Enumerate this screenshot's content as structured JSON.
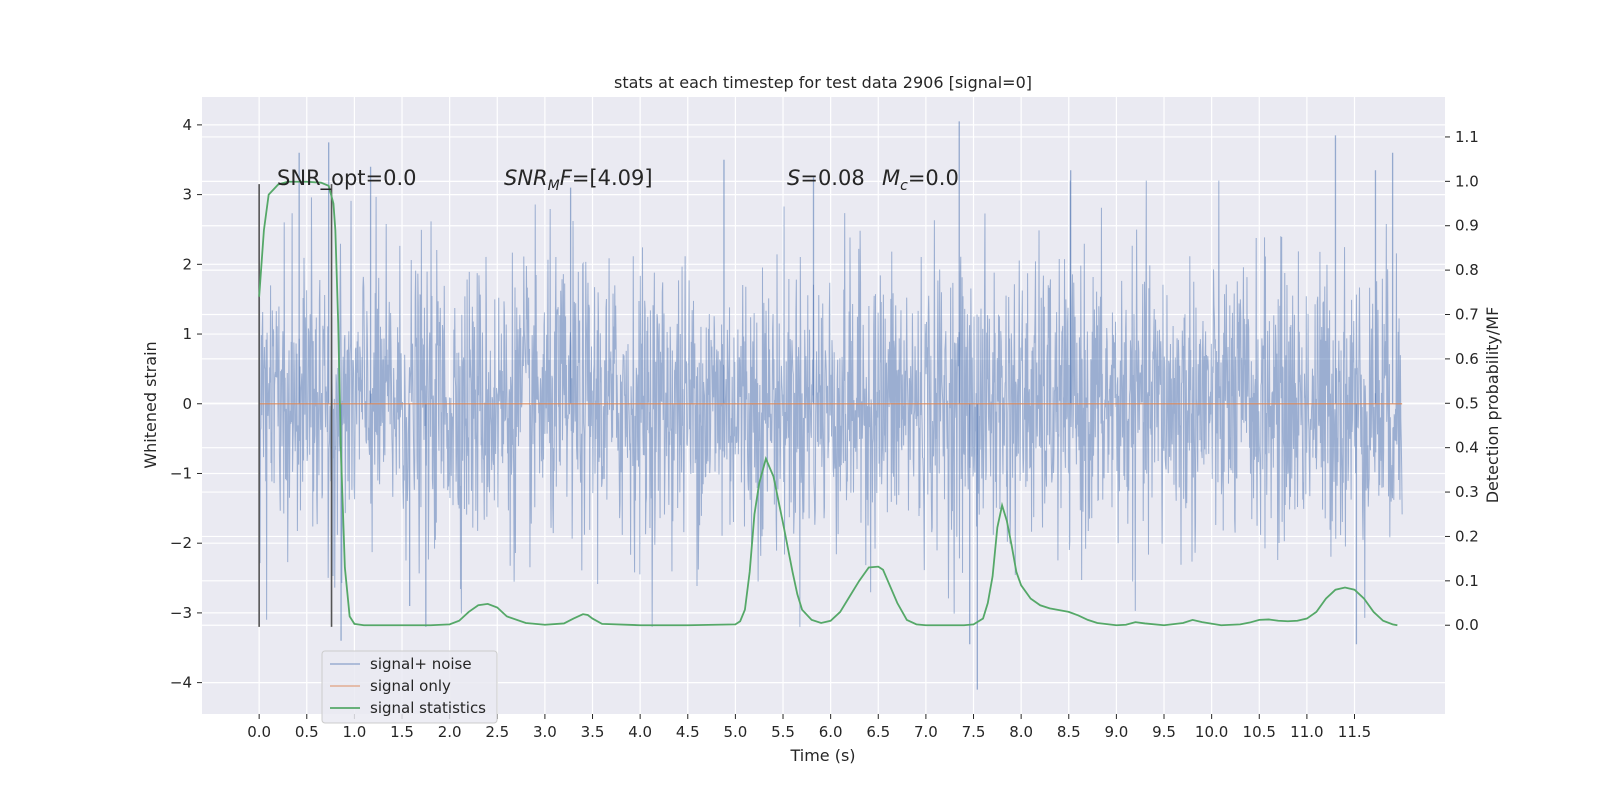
{
  "chart_data": {
    "type": "line",
    "title": "stats at each timestep for test data 2906 [signal=0]",
    "xlabel": "Time (s)",
    "ylabel": "Whitened strain",
    "ylabel_right": "Detection probability/MF",
    "xlim": [
      -0.6,
      12.45
    ],
    "ylim": [
      -4.45,
      4.4
    ],
    "ylim_right": [
      -0.2,
      1.19
    ],
    "x_ticks": [
      "0.0",
      "0.5",
      "1.0",
      "1.5",
      "2.0",
      "2.5",
      "3.0",
      "3.5",
      "4.0",
      "4.5",
      "5.0",
      "5.5",
      "6.0",
      "6.5",
      "7.0",
      "7.5",
      "8.0",
      "8.5",
      "9.0",
      "9.5",
      "10.0",
      "10.5",
      "11.0",
      "11.5"
    ],
    "y_ticks": [
      "4",
      "3",
      "2",
      "1",
      "0",
      "−1",
      "−2",
      "−3",
      "−4"
    ],
    "y_ticks_right": [
      "1.1",
      "1.0",
      "0.9",
      "0.8",
      "0.7",
      "0.6",
      "0.5",
      "0.4",
      "0.3",
      "0.2",
      "0.1",
      "0.0"
    ],
    "grid": true,
    "legend_position": "lower-left",
    "series": [
      {
        "name": "signal+ noise",
        "color": "#4c72b0",
        "axis": "left",
        "kind": "noise-trace",
        "x_range": [
          0.0,
          12.0
        ],
        "amplitude_approx": 1.0,
        "highlight_peaks": [
          {
            "x": 0.42,
            "y": 3.6
          },
          {
            "x": 0.73,
            "y": 3.75
          },
          {
            "x": 0.86,
            "y": -3.4
          },
          {
            "x": 1.17,
            "y": 3.4
          },
          {
            "x": 1.58,
            "y": -2.9
          },
          {
            "x": 1.75,
            "y": -3.2
          },
          {
            "x": 3.27,
            "y": 3.1
          },
          {
            "x": 4.88,
            "y": 3.5
          },
          {
            "x": 5.82,
            "y": 3.25
          },
          {
            "x": 7.35,
            "y": 4.05
          },
          {
            "x": 7.46,
            "y": -3.45
          },
          {
            "x": 7.54,
            "y": -4.1
          },
          {
            "x": 8.52,
            "y": 3.35
          },
          {
            "x": 11.3,
            "y": 3.85
          },
          {
            "x": 11.52,
            "y": -3.45
          },
          {
            "x": 11.72,
            "y": 3.35
          },
          {
            "x": 11.9,
            "y": 3.6
          }
        ]
      },
      {
        "name": "signal only",
        "color": "#dd8452",
        "axis": "left",
        "x": [
          0.0,
          12.0
        ],
        "y": [
          0.0,
          0.0
        ]
      },
      {
        "name": "signal statistics",
        "color": "#55a868",
        "axis": "right",
        "x": [
          0.0,
          0.05,
          0.1,
          0.2,
          0.3,
          0.5,
          0.65,
          0.73,
          0.78,
          0.8,
          0.83,
          0.86,
          0.9,
          0.95,
          1.0,
          1.1,
          1.5,
          1.8,
          2.0,
          2.1,
          2.2,
          2.3,
          2.4,
          2.5,
          2.6,
          2.8,
          3.0,
          3.2,
          3.3,
          3.4,
          3.45,
          3.5,
          3.6,
          4.0,
          4.5,
          5.0,
          5.05,
          5.1,
          5.15,
          5.2,
          5.25,
          5.32,
          5.4,
          5.5,
          5.6,
          5.65,
          5.7,
          5.8,
          5.9,
          6.0,
          6.1,
          6.2,
          6.3,
          6.4,
          6.5,
          6.55,
          6.6,
          6.7,
          6.8,
          6.9,
          7.0,
          7.4,
          7.5,
          7.6,
          7.65,
          7.7,
          7.75,
          7.8,
          7.85,
          7.9,
          7.95,
          8.0,
          8.1,
          8.2,
          8.3,
          8.4,
          8.5,
          8.6,
          8.7,
          8.8,
          9.0,
          9.1,
          9.2,
          9.3,
          9.5,
          9.7,
          9.8,
          9.9,
          10.1,
          10.3,
          10.4,
          10.5,
          10.6,
          10.7,
          10.8,
          10.9,
          11.0,
          11.1,
          11.2,
          11.3,
          11.4,
          11.5,
          11.6,
          11.7,
          11.8,
          11.9,
          11.95
        ],
        "y": [
          0.74,
          0.89,
          0.97,
          0.993,
          0.999,
          0.999,
          0.997,
          0.99,
          0.95,
          0.89,
          0.68,
          0.38,
          0.13,
          0.02,
          0.003,
          0.0,
          0.0,
          0.0,
          0.002,
          0.01,
          0.03,
          0.045,
          0.048,
          0.04,
          0.02,
          0.005,
          0.001,
          0.004,
          0.015,
          0.025,
          0.023,
          0.015,
          0.003,
          0.0,
          0.0,
          0.002,
          0.009,
          0.035,
          0.12,
          0.25,
          0.32,
          0.375,
          0.335,
          0.23,
          0.12,
          0.07,
          0.035,
          0.012,
          0.005,
          0.01,
          0.03,
          0.065,
          0.1,
          0.13,
          0.132,
          0.125,
          0.1,
          0.05,
          0.012,
          0.002,
          0.0,
          0.0,
          0.002,
          0.015,
          0.05,
          0.11,
          0.22,
          0.27,
          0.235,
          0.18,
          0.12,
          0.09,
          0.06,
          0.045,
          0.038,
          0.034,
          0.03,
          0.022,
          0.012,
          0.005,
          0.0,
          0.001,
          0.007,
          0.004,
          0.0,
          0.005,
          0.012,
          0.007,
          0.0,
          0.002,
          0.006,
          0.012,
          0.013,
          0.01,
          0.009,
          0.01,
          0.015,
          0.03,
          0.06,
          0.08,
          0.085,
          0.08,
          0.06,
          0.03,
          0.01,
          0.002,
          0.0
        ]
      }
    ],
    "vertical_markers": [
      {
        "x": 0.0,
        "y_range": [
          -3.2,
          3.15
        ]
      },
      {
        "x": 0.76,
        "y_range": [
          -3.2,
          3.15
        ]
      }
    ],
    "annotations": [
      {
        "text": "SNR_opt=0.0"
      },
      {
        "text": "=[4.09]",
        "math_prefix": "SNR",
        "math_sub": "M",
        "math_tail": "F"
      },
      {
        "text": "=0.08",
        "math_prefix": "S"
      },
      {
        "text": "=0.0",
        "math_prefix": "M",
        "math_sub": "c"
      }
    ]
  }
}
